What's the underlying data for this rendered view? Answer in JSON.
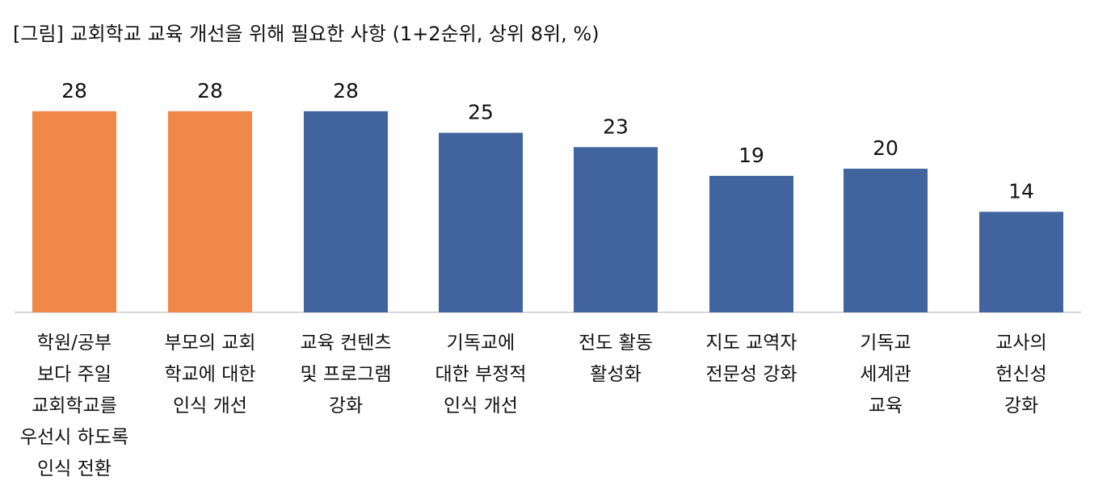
{
  "chart_data": {
    "type": "bar",
    "title": "[그림] 교회학교 교육 개선을 위해 필요한 사항 (1+2순위, 상위 8위, %)",
    "categories": [
      [
        "학원/공부",
        "보다 주일",
        "교회학교를",
        "우선시 하도록",
        "인식 전환"
      ],
      [
        "부모의 교회",
        "학교에 대한",
        "인식 개선"
      ],
      [
        "교육 컨텐츠",
        "및 프로그램",
        "강화"
      ],
      [
        "기독교에",
        "대한 부정적",
        "인식 개선"
      ],
      [
        "전도 활동",
        "활성화"
      ],
      [
        "지도 교역자",
        "전문성 강화"
      ],
      [
        "기독교",
        "세계관",
        "교육"
      ],
      [
        "교사의",
        "헌신성",
        "강화"
      ]
    ],
    "values": [
      28,
      28,
      28,
      25,
      23,
      19,
      20,
      14
    ],
    "value_labels": [
      "28",
      "28",
      "28",
      "25",
      "23",
      "19",
      "20",
      "14"
    ],
    "highlight_color": "#F0884A",
    "base_color": "#41649E",
    "highlighted_indices": [
      0,
      1
    ],
    "xlabel": "",
    "ylabel": "",
    "grid": false,
    "legend": "none"
  }
}
